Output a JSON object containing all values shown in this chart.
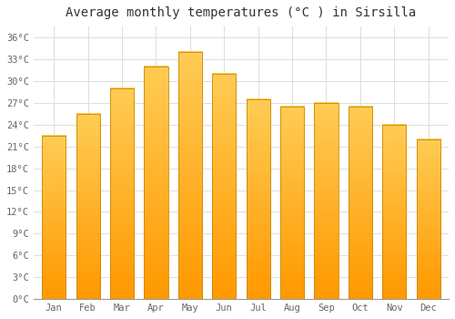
{
  "title": "Average monthly temperatures (°C ) in Sirsilla",
  "months": [
    "Jan",
    "Feb",
    "Mar",
    "Apr",
    "May",
    "Jun",
    "Jul",
    "Aug",
    "Sep",
    "Oct",
    "Nov",
    "Dec"
  ],
  "values": [
    22.5,
    25.5,
    29.0,
    32.0,
    34.0,
    31.0,
    27.5,
    26.5,
    27.0,
    26.5,
    24.0,
    22.0
  ],
  "bar_color": "#FFA500",
  "bar_edge_color": "#CC8800",
  "background_color": "#FFFFFF",
  "grid_color": "#DDDDDD",
  "yticks": [
    0,
    3,
    6,
    9,
    12,
    15,
    18,
    21,
    24,
    27,
    30,
    33,
    36
  ],
  "ylim": [
    0,
    37.5
  ],
  "title_fontsize": 10,
  "tick_fontsize": 7.5,
  "bar_width": 0.7,
  "text_color": "#666666"
}
